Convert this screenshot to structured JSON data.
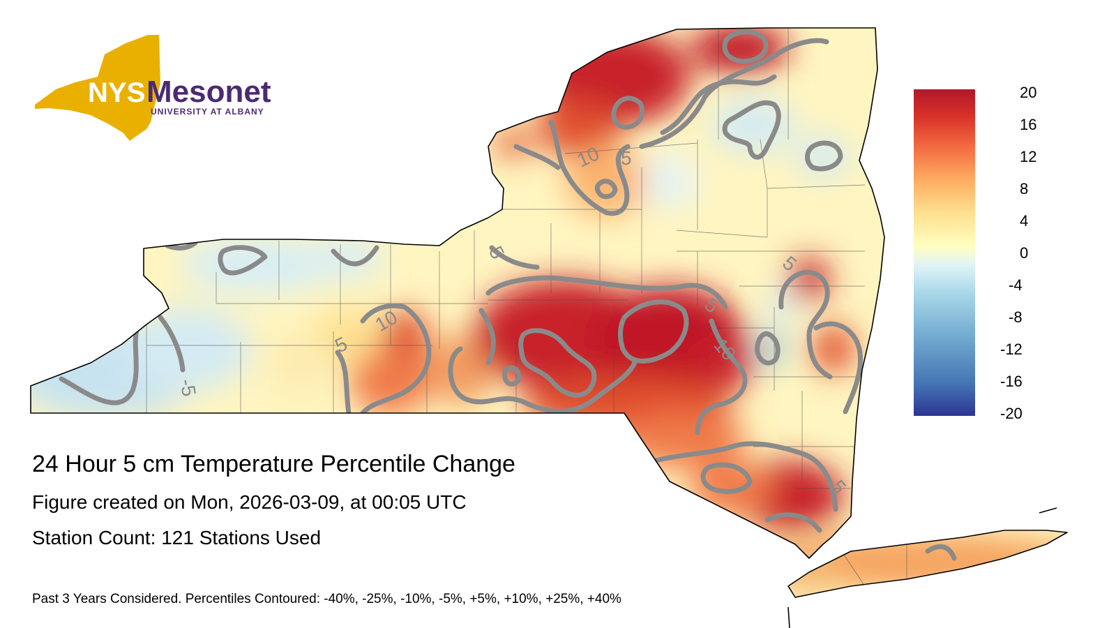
{
  "logo": {
    "nys": "NYS",
    "name": "Mesonet",
    "subtitle": "UNIVERSITY AT ALBANY",
    "gold_color": "#eab000",
    "purple_color": "#4b2a73"
  },
  "title": "24 Hour 5 cm Temperature Percentile Change",
  "created": "Figure created on Mon, 2026-03-09, at 00:05 UTC",
  "station_count": "Station Count: 121 Stations Used",
  "footnote": "Past 3 Years Considered. Percentiles Contoured: -40%, -25%, -10%, -5%, +5%, +10%, +25%, +40%",
  "colorbar": {
    "ticks": [
      "20",
      "16",
      "12",
      "8",
      "4",
      "0",
      "-4",
      "-8",
      "-12",
      "-16",
      "-20"
    ],
    "min": -20,
    "max": 20,
    "colors": [
      "#2c3593",
      "#4575b4",
      "#74add1",
      "#abd9e9",
      "#e0f3f8",
      "#ffffbf",
      "#fee090",
      "#fdae61",
      "#f46d43",
      "#d73027",
      "#b2182b"
    ]
  },
  "contour_labels": [
    "10",
    "5",
    "5",
    "10",
    "5",
    "-5",
    "5",
    "5",
    "10",
    "5"
  ],
  "contour_color": "#8a8a8a"
}
